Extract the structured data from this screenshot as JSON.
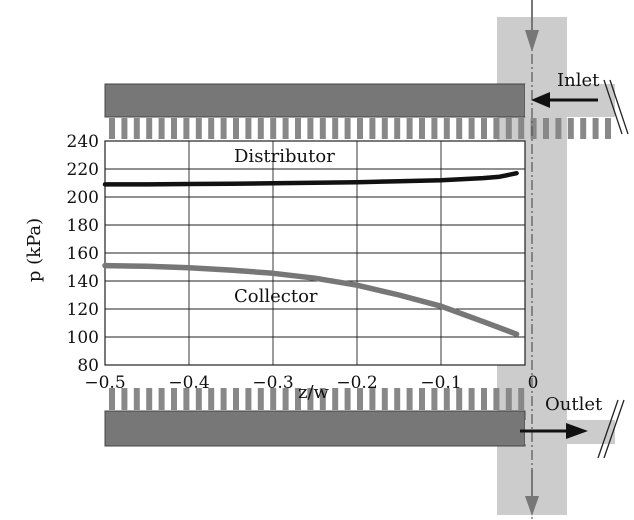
{
  "chart_data": {
    "type": "line",
    "title": "",
    "xlabel": "z/w",
    "ylabel": "p (kPa)",
    "xlim": [
      -0.5,
      0
    ],
    "ylim": [
      80,
      240
    ],
    "grid": true,
    "x_ticks": [
      -0.5,
      -0.4,
      -0.3,
      -0.2,
      -0.1,
      0
    ],
    "x_tick_labels": [
      "−0.5",
      "−0.4",
      "−0.3",
      "−0.2",
      "−0.1",
      "0"
    ],
    "y_ticks": [
      80,
      100,
      120,
      140,
      160,
      180,
      200,
      220,
      240
    ],
    "y_tick_labels": [
      "80",
      "100",
      "120",
      "140",
      "160",
      "180",
      "200",
      "220",
      "240"
    ],
    "series": [
      {
        "name": "Distributor",
        "color": "#111111",
        "x": [
          -0.5,
          -0.45,
          -0.4,
          -0.35,
          -0.3,
          -0.25,
          -0.2,
          -0.15,
          -0.1,
          -0.05,
          -0.03,
          -0.01
        ],
        "y": [
          209,
          209,
          209.3,
          209.5,
          209.8,
          210.2,
          210.6,
          211.2,
          212,
          213.5,
          214.5,
          217
        ]
      },
      {
        "name": "Collector",
        "color": "#777777",
        "x": [
          -0.5,
          -0.45,
          -0.4,
          -0.35,
          -0.3,
          -0.25,
          -0.2,
          -0.15,
          -0.1,
          -0.05,
          -0.01
        ],
        "y": [
          151,
          150.5,
          149.5,
          147.8,
          145.5,
          142,
          137,
          130,
          122,
          111,
          102
        ]
      }
    ],
    "annotations": [
      "Distributor",
      "Collector",
      "Inlet",
      "Outlet"
    ]
  },
  "labels": {
    "distributor": "Distributor",
    "collector": "Collector",
    "inlet": "Inlet",
    "outlet": "Outlet",
    "xlabel": "z/w",
    "ylabel": "p (kPa)"
  },
  "colors": {
    "channel_wall": "#777777",
    "pipe": "#cccccc",
    "distributor_line": "#111111",
    "collector_line": "#777777"
  }
}
